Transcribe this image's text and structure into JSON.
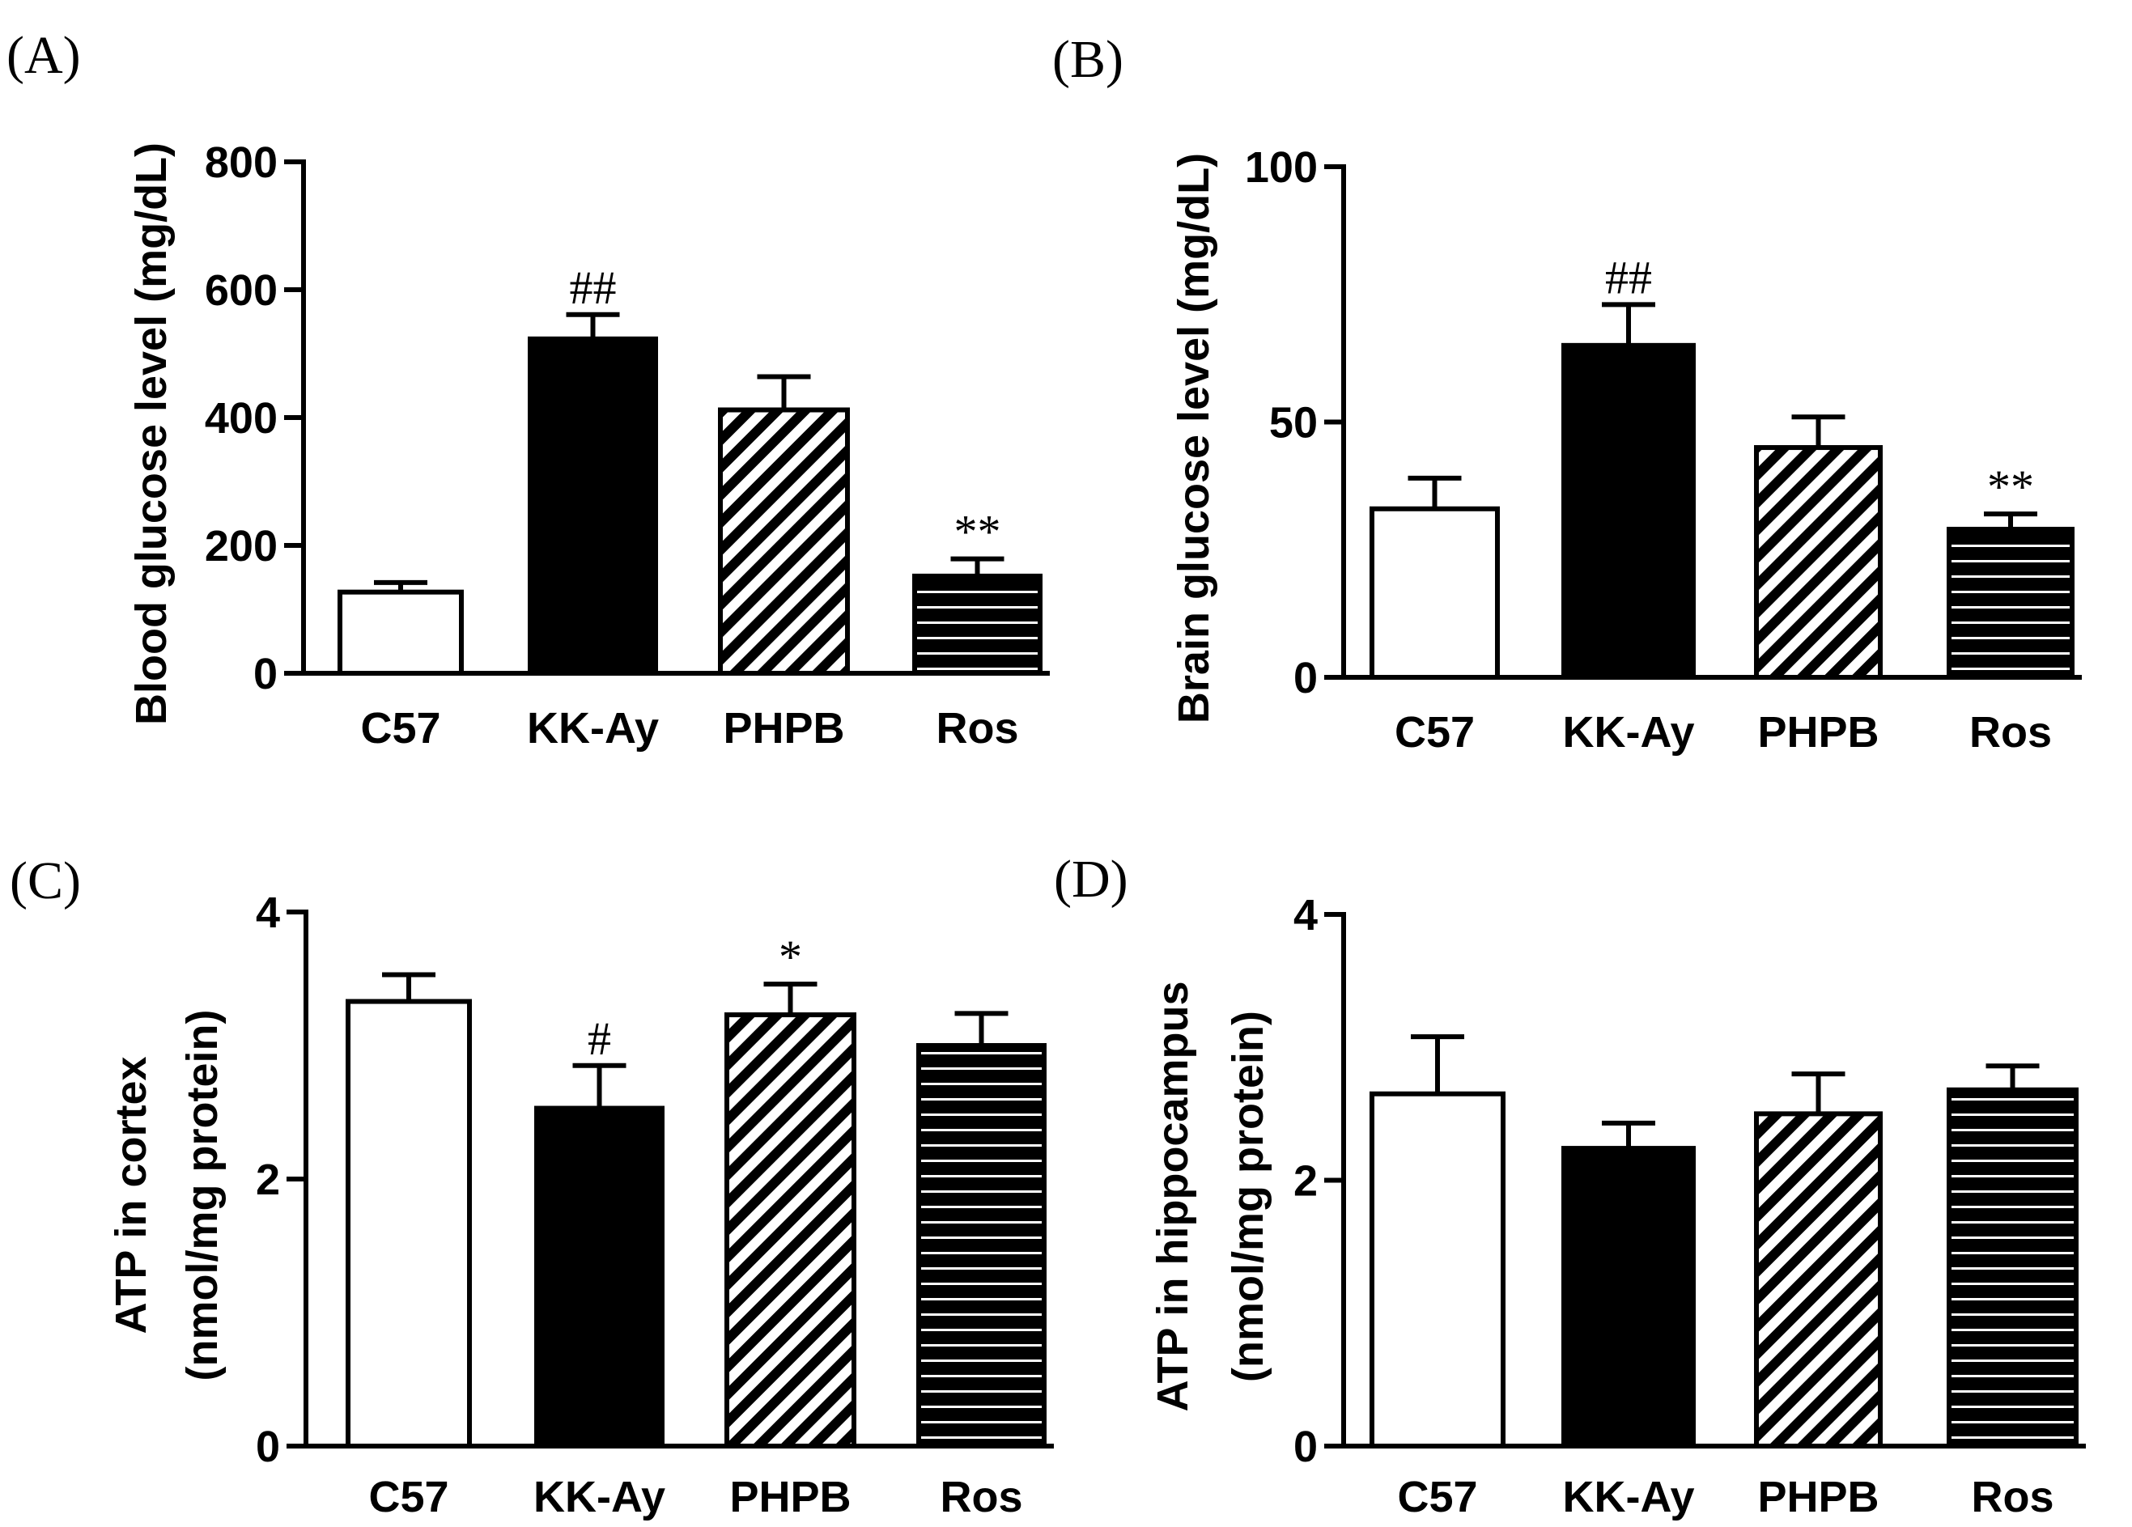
{
  "chart_data": [
    {
      "type": "bar",
      "panel": "(A)",
      "title": "",
      "xlabel": "",
      "ylabel": "Blood glucose level (mg/dL)",
      "ylabel_lines": [
        "Blood glucose level (mg/dL)"
      ],
      "ylim": [
        0,
        800
      ],
      "yticks": [
        "0",
        "200",
        "400",
        "600",
        "800"
      ],
      "categories": [
        "C57",
        "KK-Ay",
        "PHPB",
        "Ros"
      ],
      "values": [
        127,
        523,
        412,
        152
      ],
      "errors": [
        15,
        38,
        52,
        27
      ],
      "annotations": [
        "",
        "##",
        "",
        "**"
      ],
      "fills": [
        "white",
        "black",
        "diagonal",
        "horizontal"
      ]
    },
    {
      "type": "bar",
      "panel": "(B)",
      "title": "",
      "xlabel": "",
      "ylabel": "Brain glucose level (mg/dL)",
      "ylabel_lines": [
        "Brain glucose level (mg/dL)"
      ],
      "ylim": [
        0,
        100
      ],
      "yticks": [
        "0",
        "50",
        "100"
      ],
      "categories": [
        "C57",
        "KK-Ay",
        "PHPB",
        "Ros"
      ],
      "values": [
        33,
        65,
        45,
        29
      ],
      "errors": [
        6,
        8,
        6,
        3
      ],
      "annotations": [
        "",
        "##",
        "",
        "**"
      ],
      "fills": [
        "white",
        "black",
        "diagonal",
        "horizontal"
      ]
    },
    {
      "type": "bar",
      "panel": "(C)",
      "title": "",
      "xlabel": "",
      "ylabel": "ATP in cortex (nmol/mg protein)",
      "ylabel_lines": [
        "ATP in cortex",
        "(nmol/mg protein)"
      ],
      "ylim": [
        0,
        4
      ],
      "yticks": [
        "0",
        "2",
        "4"
      ],
      "categories": [
        "C57",
        "KK-Ay",
        "PHPB",
        "Ros"
      ],
      "values": [
        3.33,
        2.53,
        3.23,
        3.0
      ],
      "errors": [
        0.2,
        0.32,
        0.23,
        0.24
      ],
      "annotations": [
        "",
        "#",
        "*",
        ""
      ],
      "fills": [
        "white",
        "black",
        "diagonal",
        "horizontal"
      ]
    },
    {
      "type": "bar",
      "panel": "(D)",
      "title": "",
      "xlabel": "",
      "ylabel": "ATP in hippocampus (nmol/mg protein)",
      "ylabel_lines": [
        "ATP in hippocampus",
        "(nmol/mg protein)"
      ],
      "ylim": [
        0,
        4
      ],
      "yticks": [
        "0",
        "2",
        "4"
      ],
      "categories": [
        "C57",
        "KK-Ay",
        "PHPB",
        "Ros"
      ],
      "values": [
        2.65,
        2.24,
        2.5,
        2.68
      ],
      "errors": [
        0.43,
        0.19,
        0.3,
        0.18
      ],
      "annotations": [
        "",
        "",
        "",
        ""
      ],
      "fills": [
        "white",
        "black",
        "diagonal",
        "horizontal"
      ]
    }
  ]
}
